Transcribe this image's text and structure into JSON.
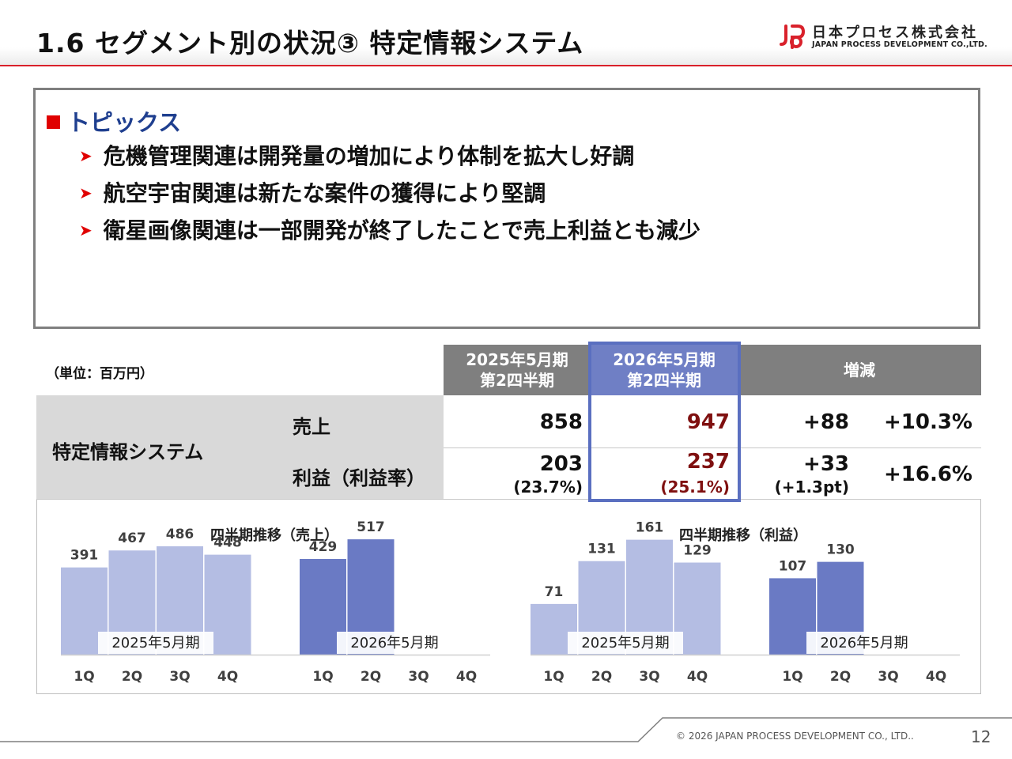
{
  "header": {
    "title": "1.6  セグメント別の状況③  特定情報システム",
    "logo_jp": "日本プロセス株式会社",
    "logo_en": "JAPAN PROCESS DEVELOPMENT CO.,LTD.",
    "accent_color": "#d9212b"
  },
  "topics": {
    "heading": "トピックス",
    "items": [
      "危機管理関連は開発量の増加により体制を拡大し好調",
      "航空宇宙関連は新たな案件の獲得により堅調",
      "衛星画像関連は一部開発が終了したことで売上利益とも減少"
    ]
  },
  "table": {
    "unit": "（単位：百万円）",
    "col_prev": [
      "2025年5月期",
      "第2四半期"
    ],
    "col_curr": [
      "2026年5月期",
      "第2四半期"
    ],
    "col_change": "増減",
    "segment": "特定情報システム",
    "rows": [
      {
        "label": "売上",
        "prev": "858",
        "curr": "947",
        "diff": "+88",
        "pct": "+10.3%"
      },
      {
        "label": "利益（利益率）",
        "prev": "203",
        "prev_sub": "(23.7%)",
        "curr": "237",
        "curr_sub": "(25.1%)",
        "diff": "+33",
        "diff_sub": "(+1.3pt)",
        "pct": "+16.6%"
      }
    ]
  },
  "chart_data": [
    {
      "type": "bar",
      "title": "四半期推移（売上）",
      "categories": [
        "1Q",
        "2Q",
        "3Q",
        "4Q"
      ],
      "series": [
        {
          "name": "2025年5月期",
          "values": [
            391,
            467,
            486,
            448
          ],
          "color": "#b4bde3"
        },
        {
          "name": "2026年5月期",
          "values": [
            429,
            517,
            null,
            null
          ],
          "color": "#6a7ac4"
        }
      ],
      "ylim": [
        0,
        560
      ]
    },
    {
      "type": "bar",
      "title": "四半期推移（利益）",
      "categories": [
        "1Q",
        "2Q",
        "3Q",
        "4Q"
      ],
      "series": [
        {
          "name": "2025年5月期",
          "values": [
            71,
            131,
            161,
            129
          ],
          "color": "#b4bde3"
        },
        {
          "name": "2026年5月期",
          "values": [
            107,
            130,
            null,
            null
          ],
          "color": "#6a7ac4"
        }
      ],
      "ylim": [
        0,
        175
      ]
    }
  ],
  "footer": {
    "copyright": "© 2026 JAPAN PROCESS DEVELOPMENT CO., LTD..",
    "page": "12"
  }
}
